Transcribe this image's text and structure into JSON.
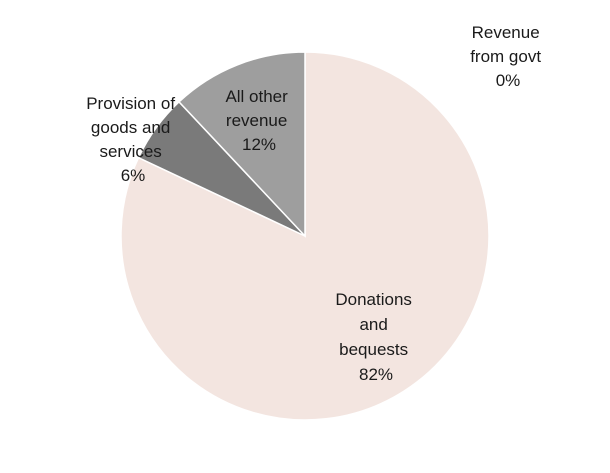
{
  "chart_data": {
    "type": "pie",
    "title": "",
    "start_angle_deg": 0,
    "direction": "clockwise",
    "series": [
      {
        "name": "Revenue from govt",
        "label_lines": [
          "Revenue",
          "from govt",
          "0%"
        ],
        "value": 0,
        "percent_label": "0%",
        "color": "#c9c9c9"
      },
      {
        "name": "Donations and bequests",
        "label_lines": [
          "Donations",
          "and",
          "bequests",
          "82%"
        ],
        "value": 82,
        "percent_label": "82%",
        "color": "#f3e5e0"
      },
      {
        "name": "Provision of goods and services",
        "label_lines": [
          "Provision of",
          "goods and",
          "services",
          "6%"
        ],
        "value": 6,
        "percent_label": "6%",
        "color": "#7a7a7a"
      },
      {
        "name": "All other revenue",
        "label_lines": [
          "All other",
          "revenue",
          "12%"
        ],
        "value": 12,
        "percent_label": "12%",
        "color": "#9e9e9e"
      }
    ]
  }
}
